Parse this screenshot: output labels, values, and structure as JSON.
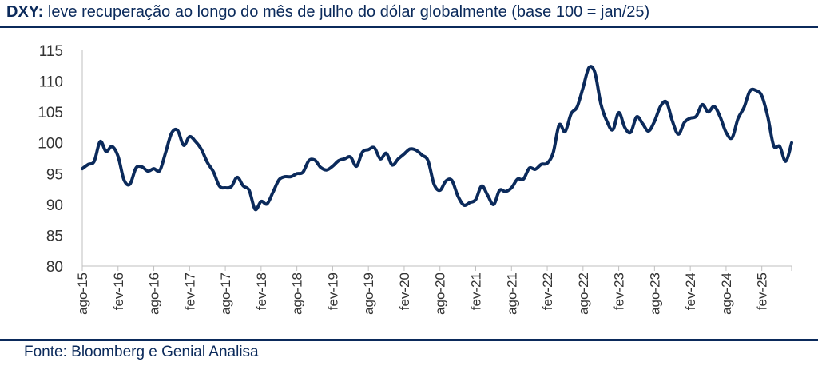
{
  "header": {
    "title_bold": "DXY:",
    "title_text": " leve recuperação ao longo do mês de julho do dólar globalmente (base 100 = jan/25)"
  },
  "footer": {
    "source": "Fonte: Bloomberg e Genial Analisa"
  },
  "colors": {
    "line": "#0b2a5b",
    "axis": "#bfbfbf",
    "rule": "#0b2a5b"
  },
  "chart_data": {
    "type": "line",
    "title": "DXY: leve recuperação ao longo do mês de julho do dólar globalmente (base 100 = jan/25)",
    "xlabel": "",
    "ylabel": "",
    "ylim": [
      80,
      115
    ],
    "yticks": [
      80,
      85,
      90,
      95,
      100,
      105,
      110,
      115
    ],
    "grid": false,
    "legend": "none",
    "xlim": [
      "2015-08",
      "2025-07"
    ],
    "xticks": [
      {
        "x": "2015-08",
        "label": "ago-15"
      },
      {
        "x": "2016-02",
        "label": "fev-16"
      },
      {
        "x": "2016-08",
        "label": "ago-16"
      },
      {
        "x": "2017-02",
        "label": "fev-17"
      },
      {
        "x": "2017-08",
        "label": "ago-17"
      },
      {
        "x": "2018-02",
        "label": "fev-18"
      },
      {
        "x": "2018-08",
        "label": "ago-18"
      },
      {
        "x": "2019-02",
        "label": "fev-19"
      },
      {
        "x": "2019-08",
        "label": "ago-19"
      },
      {
        "x": "2020-02",
        "label": "fev-20"
      },
      {
        "x": "2020-08",
        "label": "ago-20"
      },
      {
        "x": "2021-02",
        "label": "fev-21"
      },
      {
        "x": "2021-08",
        "label": "ago-21"
      },
      {
        "x": "2022-02",
        "label": "fev-22"
      },
      {
        "x": "2022-08",
        "label": "ago-22"
      },
      {
        "x": "2023-02",
        "label": "fev-23"
      },
      {
        "x": "2023-08",
        "label": "ago-23"
      },
      {
        "x": "2024-02",
        "label": "fev-24"
      },
      {
        "x": "2024-08",
        "label": "ago-24"
      },
      {
        "x": "2025-02",
        "label": "fev-25"
      }
    ],
    "series": [
      {
        "x": [
          "2015-08",
          "2015-09",
          "2015-10",
          "2015-11",
          "2015-12",
          "2016-01",
          "2016-02",
          "2016-03",
          "2016-04",
          "2016-05",
          "2016-06",
          "2016-07",
          "2016-08",
          "2016-09",
          "2016-10",
          "2016-11",
          "2016-12",
          "2017-01",
          "2017-02",
          "2017-03",
          "2017-04",
          "2017-05",
          "2017-06",
          "2017-07",
          "2017-08",
          "2017-09",
          "2017-10",
          "2017-11",
          "2017-12",
          "2018-01",
          "2018-02",
          "2018-03",
          "2018-04",
          "2018-05",
          "2018-06",
          "2018-07",
          "2018-08",
          "2018-09",
          "2018-10",
          "2018-11",
          "2018-12",
          "2019-01",
          "2019-02",
          "2019-03",
          "2019-04",
          "2019-05",
          "2019-06",
          "2019-07",
          "2019-08",
          "2019-09",
          "2019-10",
          "2019-11",
          "2019-12",
          "2020-01",
          "2020-02",
          "2020-03",
          "2020-04",
          "2020-05",
          "2020-06",
          "2020-07",
          "2020-08",
          "2020-09",
          "2020-10",
          "2020-11",
          "2020-12",
          "2021-01",
          "2021-02",
          "2021-03",
          "2021-04",
          "2021-05",
          "2021-06",
          "2021-07",
          "2021-08",
          "2021-09",
          "2021-10",
          "2021-11",
          "2021-12",
          "2022-01",
          "2022-02",
          "2022-03",
          "2022-04",
          "2022-05",
          "2022-06",
          "2022-07",
          "2022-08",
          "2022-09",
          "2022-10",
          "2022-11",
          "2022-12",
          "2023-01",
          "2023-02",
          "2023-03",
          "2023-04",
          "2023-05",
          "2023-06",
          "2023-07",
          "2023-08",
          "2023-09",
          "2023-10",
          "2023-11",
          "2023-12",
          "2024-01",
          "2024-02",
          "2024-03",
          "2024-04",
          "2024-05",
          "2024-06",
          "2024-07",
          "2024-08",
          "2024-09",
          "2024-10",
          "2024-11",
          "2024-12",
          "2025-01",
          "2025-02",
          "2025-03",
          "2025-04",
          "2025-05",
          "2025-06",
          "2025-07"
        ],
        "values": [
          95.8,
          96.5,
          97.0,
          100.2,
          98.6,
          99.4,
          97.8,
          94.0,
          93.3,
          95.9,
          96.1,
          95.4,
          95.8,
          95.5,
          98.5,
          101.6,
          102.0,
          99.6,
          101.0,
          100.2,
          98.9,
          96.8,
          95.3,
          93.0,
          92.7,
          92.9,
          94.4,
          93.0,
          92.3,
          89.2,
          90.5,
          90.1,
          92.0,
          94.0,
          94.5,
          94.5,
          95.0,
          95.2,
          97.1,
          97.2,
          96.0,
          95.6,
          96.2,
          97.1,
          97.4,
          97.7,
          96.2,
          98.5,
          98.9,
          99.2,
          97.4,
          98.3,
          96.4,
          97.4,
          98.2,
          99.0,
          98.8,
          98.0,
          97.1,
          93.3,
          92.3,
          93.8,
          93.9,
          91.4,
          89.9,
          90.3,
          90.8,
          93.0,
          91.5,
          90.0,
          92.3,
          92.1,
          92.7,
          94.1,
          94.1,
          95.9,
          95.7,
          96.5,
          96.7,
          98.4,
          102.9,
          101.8,
          104.7,
          105.8,
          108.9,
          112.2,
          111.4,
          106.3,
          103.5,
          102.1,
          104.9,
          102.5,
          101.7,
          104.2,
          103.1,
          101.9,
          103.5,
          105.9,
          106.6,
          103.5,
          101.4,
          103.3,
          104.0,
          104.3,
          106.2,
          105.0,
          105.9,
          104.2,
          101.7,
          100.8,
          103.9,
          105.7,
          108.4,
          108.5,
          107.6,
          104.2,
          99.5,
          99.4,
          97.0,
          100.0
        ]
      }
    ]
  }
}
